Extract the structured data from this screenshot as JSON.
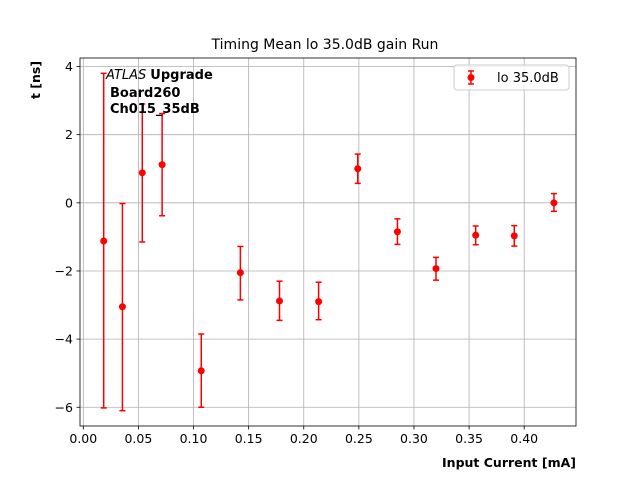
{
  "chart_data": {
    "type": "scatter",
    "title": "Timing Mean lo 35.0dB gain Run",
    "xlabel": "Input Current [mA]",
    "ylabel": "t [ns]",
    "xlim": [
      -0.003,
      0.447
    ],
    "ylim": [
      -6.55,
      4.25
    ],
    "xticks": [
      0.0,
      0.05,
      0.1,
      0.15,
      0.2,
      0.25,
      0.3,
      0.35,
      0.4
    ],
    "xtick_labels": [
      "0.00",
      "0.05",
      "0.10",
      "0.15",
      "0.20",
      "0.25",
      "0.30",
      "0.35",
      "0.40"
    ],
    "yticks": [
      -6,
      -4,
      -2,
      0,
      2,
      4
    ],
    "ytick_labels": [
      "−6",
      "−4",
      "−2",
      "0",
      "2",
      "4"
    ],
    "grid": true,
    "legend_position": "top-right",
    "annotation": {
      "experiment": "ATLAS",
      "tag": "Upgrade",
      "line2": "Board260",
      "line3": "Ch015_35dB"
    },
    "series": [
      {
        "name": "lo 35.0dB",
        "color": "#ff0000",
        "marker": "circle",
        "x": [
          0.0185,
          0.0355,
          0.0535,
          0.0715,
          0.107,
          0.1425,
          0.178,
          0.2135,
          0.249,
          0.285,
          0.32,
          0.356,
          0.391,
          0.427
        ],
        "y": [
          -1.12,
          -3.05,
          0.88,
          1.12,
          -4.93,
          -2.05,
          -2.88,
          -2.9,
          1.0,
          -0.85,
          -1.93,
          -0.95,
          -0.97,
          0.0
        ],
        "yerr_low": [
          4.9,
          3.05,
          2.03,
          1.5,
          1.07,
          0.8,
          0.57,
          0.53,
          0.43,
          0.37,
          0.34,
          0.28,
          0.3,
          0.25
        ],
        "yerr_high": [
          4.92,
          3.03,
          2.02,
          1.5,
          1.08,
          0.77,
          0.58,
          0.57,
          0.43,
          0.38,
          0.33,
          0.27,
          0.3,
          0.27
        ]
      }
    ]
  }
}
